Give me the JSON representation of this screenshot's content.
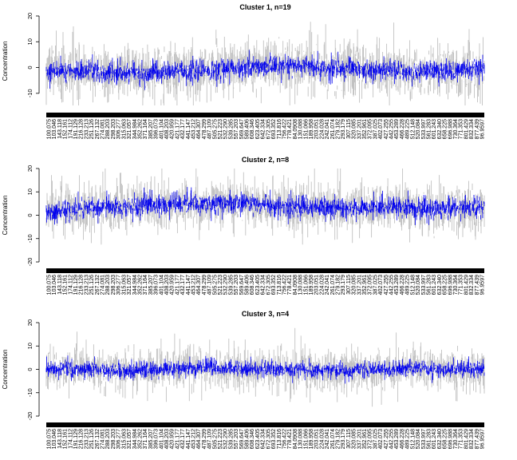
{
  "chart_data": [
    {
      "type": "line",
      "title": "Cluster 1, n=19",
      "ylabel": "Concentration",
      "xlabel": "",
      "ylim": [
        -15,
        20
      ],
      "yticks": [
        -10,
        0,
        10,
        20
      ],
      "center_profile": [
        -1.5,
        -1,
        -1.5,
        -2,
        -2.5,
        -2,
        -1.5,
        -1,
        -0.5,
        0,
        0.5,
        0.5,
        0,
        -0.5,
        -1,
        -1,
        -1.5,
        -1.5,
        -1,
        -0.5
      ],
      "series": [
        {
          "role": "members",
          "color": "#bebebe",
          "spread": 9
        },
        {
          "role": "cluster-mean",
          "color": "#0000ee",
          "spread": 3.5
        }
      ]
    },
    {
      "type": "line",
      "title": "Cluster 2, n=8",
      "ylabel": "Concentration",
      "xlabel": "",
      "ylim": [
        -20,
        20
      ],
      "yticks": [
        -20,
        -10,
        0,
        10,
        20
      ],
      "center_profile": [
        1,
        2,
        3,
        3.5,
        4,
        4.5,
        5,
        5,
        5,
        4.5,
        4,
        3.5,
        3,
        3,
        3.5,
        3.5,
        3,
        3,
        3.5,
        3.5
      ],
      "series": [
        {
          "role": "members",
          "color": "#bebebe",
          "spread": 9
        },
        {
          "role": "cluster-mean",
          "color": "#0000ee",
          "spread": 4
        }
      ]
    },
    {
      "type": "line",
      "title": "Cluster 3, n=4",
      "ylabel": "Concentration",
      "xlabel": "",
      "ylim": [
        -20,
        20
      ],
      "yticks": [
        -20,
        -10,
        0,
        10,
        20
      ],
      "center_profile": [
        0,
        0,
        0,
        -0.5,
        -0.5,
        0,
        0.5,
        0.5,
        0,
        0,
        0,
        0,
        -0.5,
        -0.5,
        0,
        0,
        0.5,
        0,
        0,
        0
      ],
      "series": [
        {
          "role": "members",
          "color": "#bebebe",
          "spread": 8
        },
        {
          "role": "cluster-mean",
          "color": "#0000ee",
          "spread": 3
        }
      ]
    }
  ],
  "x_tick_labels": [
    "100.075",
    "103.046",
    "143.118",
    "152.161",
    "174.112",
    "191.129",
    "216.128",
    "233.213",
    "251.126",
    "267.132",
    "274.081",
    "288.203",
    "298.203",
    "306.277",
    "315.063",
    "321.057",
    "344.984",
    "352.262",
    "371.164",
    "385.207",
    "396.073",
    "401.104",
    "408.203",
    "420.959",
    "421.177",
    "432.177",
    "441.147",
    "453.212",
    "464.307",
    "478.299",
    "487.109",
    "505.275",
    "521.223",
    "532.290",
    "539.285",
    "557.203",
    "569.647",
    "589.406",
    "608.346",
    "623.405",
    "642.334",
    "672.305",
    "693.352",
    "713.816",
    "756.422",
    "778.421",
    "84.0908",
    "130.088",
    "151.066",
    "189.958",
    "203.051",
    "224.028",
    "242.041",
    "261.074",
    "279.182",
    "293.179",
    "307.115",
    "320.085",
    "337.201",
    "352.961",
    "372.095",
    "387.025",
    "402.073",
    "427.255",
    "442.255",
    "453.289",
    "466.228",
    "489.225",
    "512.148",
    "520.084",
    "533.997",
    "561.283",
    "601.243",
    "632.340",
    "658.225",
    "696.988",
    "730.364",
    "771.353",
    "801.429",
    "832.334",
    "877.439",
    "96.9597"
  ]
}
